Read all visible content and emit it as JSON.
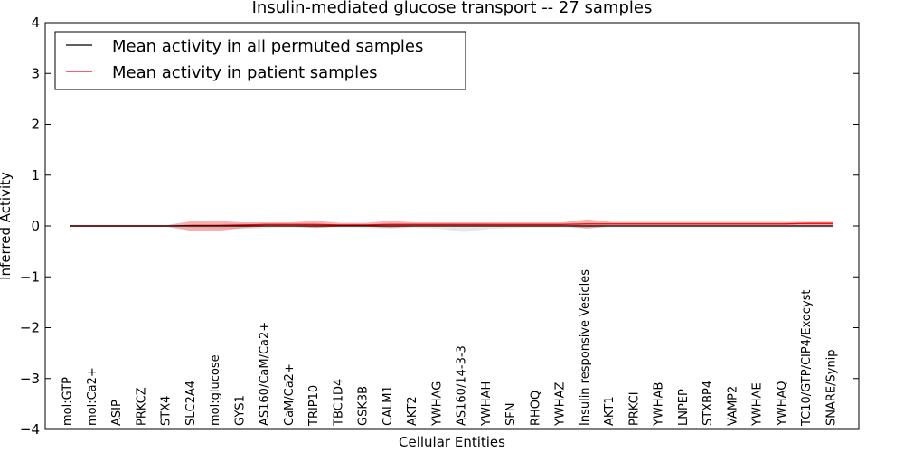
{
  "chart_data": {
    "type": "line",
    "title": "Insulin-mediated glucose transport -- 27 samples",
    "xlabel": "Cellular Entities",
    "ylabel": "Inferred Activity",
    "ylim": [
      -4,
      4
    ],
    "yticks": [
      "4",
      "3",
      "2",
      "1",
      "0",
      "−1",
      "−2",
      "−3",
      "−4"
    ],
    "ytick_values": [
      4,
      3,
      2,
      1,
      0,
      -1,
      -2,
      -3,
      -4
    ],
    "grid": false,
    "legend_position": "top-left",
    "categories": [
      "mol:GTP",
      "mol:Ca2+",
      "ASIP",
      "PRKCZ",
      "STX4",
      "SLC2A4",
      "mol:glucose",
      "GYS1",
      "AS160/CaM/Ca2+",
      "CaM/Ca2+",
      "TRIP10",
      "TBC1D4",
      "GSK3B",
      "CALM1",
      "AKT2",
      "YWHAG",
      "AS160/14-3-3",
      "YWHAH",
      "SFN",
      "RHOQ",
      "YWHAZ",
      "Insulin responsive Vesicles",
      "AKT1",
      "PRKCI",
      "YWHAB",
      "LNPEP",
      "STXBP4",
      "VAMP2",
      "YWHAE",
      "YWHAQ",
      "TC10/GTP/CIP4/Exocyst",
      "SNARE/Synip"
    ],
    "series": [
      {
        "name": "Mean activity in all permuted samples",
        "color": "#000000",
        "band_color": "#bbbbbb",
        "values": [
          0.0,
          0.0,
          0.0,
          0.0,
          0.0,
          0.0,
          0.0,
          0.0,
          0.0,
          0.0,
          0.0,
          0.0,
          0.0,
          0.0,
          0.0,
          0.0,
          0.0,
          0.0,
          0.0,
          0.0,
          0.0,
          0.0,
          0.0,
          0.0,
          0.0,
          0.0,
          0.0,
          0.0,
          0.0,
          0.0,
          0.0,
          0.0
        ],
        "lower": [
          -0.02,
          -0.02,
          -0.02,
          -0.02,
          -0.02,
          -0.03,
          -0.05,
          -0.06,
          -0.04,
          -0.03,
          -0.03,
          -0.03,
          -0.04,
          -0.05,
          -0.04,
          -0.05,
          -0.12,
          -0.06,
          -0.04,
          -0.03,
          -0.03,
          -0.05,
          -0.03,
          -0.03,
          -0.03,
          -0.03,
          -0.03,
          -0.03,
          -0.03,
          -0.03,
          -0.03,
          -0.03
        ],
        "upper": [
          0.02,
          0.02,
          0.02,
          0.02,
          0.02,
          0.03,
          0.04,
          0.05,
          0.04,
          0.03,
          0.03,
          0.03,
          0.04,
          0.05,
          0.04,
          0.05,
          0.06,
          0.05,
          0.04,
          0.03,
          0.03,
          0.05,
          0.03,
          0.03,
          0.03,
          0.03,
          0.03,
          0.03,
          0.03,
          0.03,
          0.03,
          0.03
        ]
      },
      {
        "name": "Mean activity in patient samples",
        "color": "#ff0000",
        "band_color": "#ef6f6f",
        "values": [
          0.0,
          0.0,
          0.0,
          0.0,
          0.0,
          0.01,
          0.01,
          0.02,
          0.03,
          0.03,
          0.03,
          0.02,
          0.02,
          0.03,
          0.03,
          0.03,
          0.03,
          0.03,
          0.03,
          0.03,
          0.03,
          0.04,
          0.04,
          0.04,
          0.04,
          0.04,
          0.04,
          0.04,
          0.04,
          0.04,
          0.05,
          0.05
        ],
        "lower": [
          -0.02,
          -0.02,
          -0.02,
          -0.02,
          -0.02,
          -0.1,
          -0.1,
          -0.04,
          -0.01,
          -0.01,
          -0.04,
          -0.01,
          -0.01,
          -0.04,
          -0.01,
          -0.01,
          0.0,
          0.0,
          0.0,
          0.0,
          0.0,
          -0.05,
          0.0,
          0.0,
          0.0,
          0.0,
          0.0,
          0.0,
          0.0,
          0.0,
          0.01,
          0.01
        ],
        "upper": [
          0.02,
          0.02,
          0.02,
          0.02,
          0.02,
          0.1,
          0.1,
          0.07,
          0.07,
          0.07,
          0.1,
          0.06,
          0.06,
          0.1,
          0.07,
          0.07,
          0.07,
          0.07,
          0.07,
          0.07,
          0.07,
          0.13,
          0.08,
          0.08,
          0.08,
          0.08,
          0.08,
          0.08,
          0.08,
          0.08,
          0.08,
          0.08
        ]
      }
    ]
  }
}
